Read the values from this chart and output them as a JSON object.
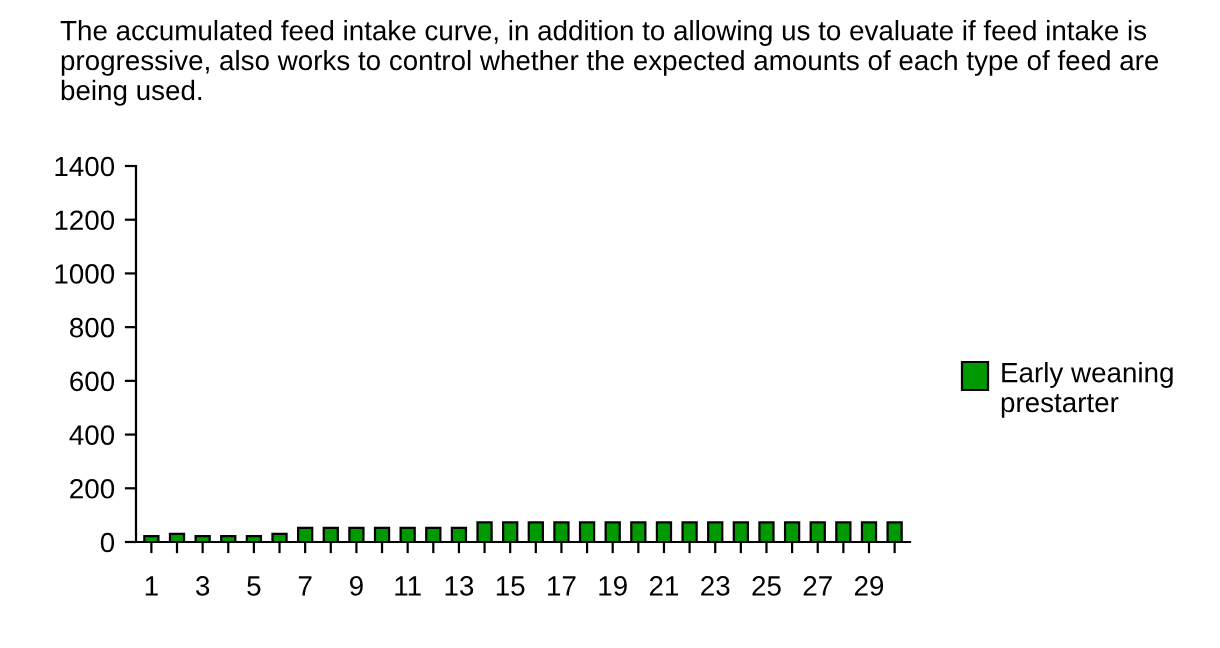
{
  "chart_data": {
    "type": "bar",
    "title": "The accumulated feed intake curve, in addition to allowing us to evaluate if feed intake is progressive, also works to control whether the expected amounts of each type of feed are being used.",
    "categories": [
      "1",
      null,
      "3",
      null,
      "5",
      null,
      "7",
      null,
      "9",
      null,
      "11",
      null,
      "13",
      null,
      "15",
      null,
      "17",
      null,
      "19",
      null,
      "21",
      null,
      "23",
      null,
      "25",
      null,
      "27",
      null,
      "29",
      null
    ],
    "series": [
      {
        "name": "Early weaning prestarter",
        "color": "#009900",
        "values": [
          22,
          30,
          22,
          22,
          22,
          30,
          53,
          53,
          53,
          53,
          53,
          53,
          53,
          73,
          73,
          73,
          73,
          73,
          73,
          73,
          73,
          73,
          73,
          73,
          73,
          73,
          73,
          73,
          73,
          73
        ]
      }
    ],
    "ylim": [
      0,
      1400
    ],
    "yticks": [
      0,
      200,
      400,
      600,
      800,
      1000,
      1200,
      1400
    ],
    "grid": false,
    "legend": "right"
  }
}
